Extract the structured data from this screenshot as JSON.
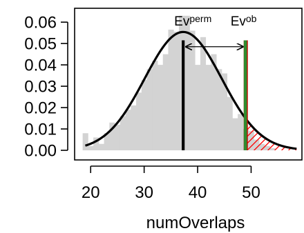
{
  "chart_data": {
    "type": "bar",
    "xlabel": "numOverlaps",
    "ylabel": "",
    "xlim": [
      17,
      59.5
    ],
    "ylim": [
      -0.0045,
      0.0665
    ],
    "x_ticks": [
      20,
      30,
      40,
      50
    ],
    "x_tick_labels": [
      "20",
      "30",
      "40",
      "50"
    ],
    "y_ticks": [
      0.0,
      0.01,
      0.02,
      0.03,
      0.04,
      0.05,
      0.06
    ],
    "y_tick_labels": [
      "0.00",
      "0.01",
      "0.02",
      "0.03",
      "0.04",
      "0.05",
      "0.06"
    ],
    "histogram": {
      "bin_width": 1,
      "bins": [
        {
          "x": 19,
          "height": 0.008
        },
        {
          "x": 20,
          "height": 0.002
        },
        {
          "x": 21,
          "height": 0.006
        },
        {
          "x": 22,
          "height": 0.003
        },
        {
          "x": 23,
          "height": 0.008
        },
        {
          "x": 24,
          "height": 0.013
        },
        {
          "x": 25,
          "height": 0.012
        },
        {
          "x": 26,
          "height": 0.016
        },
        {
          "x": 27,
          "height": 0.019
        },
        {
          "x": 28,
          "height": 0.021
        },
        {
          "x": 29,
          "height": 0.027
        },
        {
          "x": 30,
          "height": 0.033
        },
        {
          "x": 31,
          "height": 0.038
        },
        {
          "x": 32,
          "height": 0.042
        },
        {
          "x": 33,
          "height": 0.04
        },
        {
          "x": 34,
          "height": 0.045
        },
        {
          "x": 35,
          "height": 0.0565
        },
        {
          "x": 36,
          "height": 0.0555
        },
        {
          "x": 37,
          "height": 0.063
        },
        {
          "x": 38,
          "height": 0.063
        },
        {
          "x": 39,
          "height": 0.056
        },
        {
          "x": 40,
          "height": 0.04
        },
        {
          "x": 41,
          "height": 0.053
        },
        {
          "x": 42,
          "height": 0.04
        },
        {
          "x": 43,
          "height": 0.045
        },
        {
          "x": 44,
          "height": 0.038
        },
        {
          "x": 45,
          "height": 0.036
        },
        {
          "x": 46,
          "height": 0.025
        },
        {
          "x": 47,
          "height": 0.015
        },
        {
          "x": 48,
          "height": 0.017
        },
        {
          "x": 49,
          "height": 0.01
        },
        {
          "x": 50,
          "height": 0.009
        },
        {
          "x": 51,
          "height": 0.005
        },
        {
          "x": 52,
          "height": 0.003
        },
        {
          "x": 53,
          "height": 0.002
        },
        {
          "x": 54,
          "height": 0.001
        }
      ],
      "color": "#d3d3d3"
    },
    "normal_curve": {
      "mean": 37.3,
      "sd": 7.2,
      "x_range": [
        19,
        58.5
      ],
      "color": "#000000"
    },
    "ev_perm": {
      "label": "Ev",
      "sup": "perm",
      "x": 37.3,
      "y_top": 0.0515,
      "color": "#000000"
    },
    "ev_obs": {
      "label": "Ev",
      "sup": "ob",
      "x": 49.0,
      "y_top": 0.0515,
      "color": "#2e8b2e",
      "edge_color": "#cc0000"
    },
    "arrow": {
      "x_from": 37.3,
      "x_to": 49.0,
      "y": 0.0485
    },
    "tail_hatch": {
      "x_from": 49.0,
      "x_to": 58.5,
      "color": "#ff0000"
    }
  }
}
